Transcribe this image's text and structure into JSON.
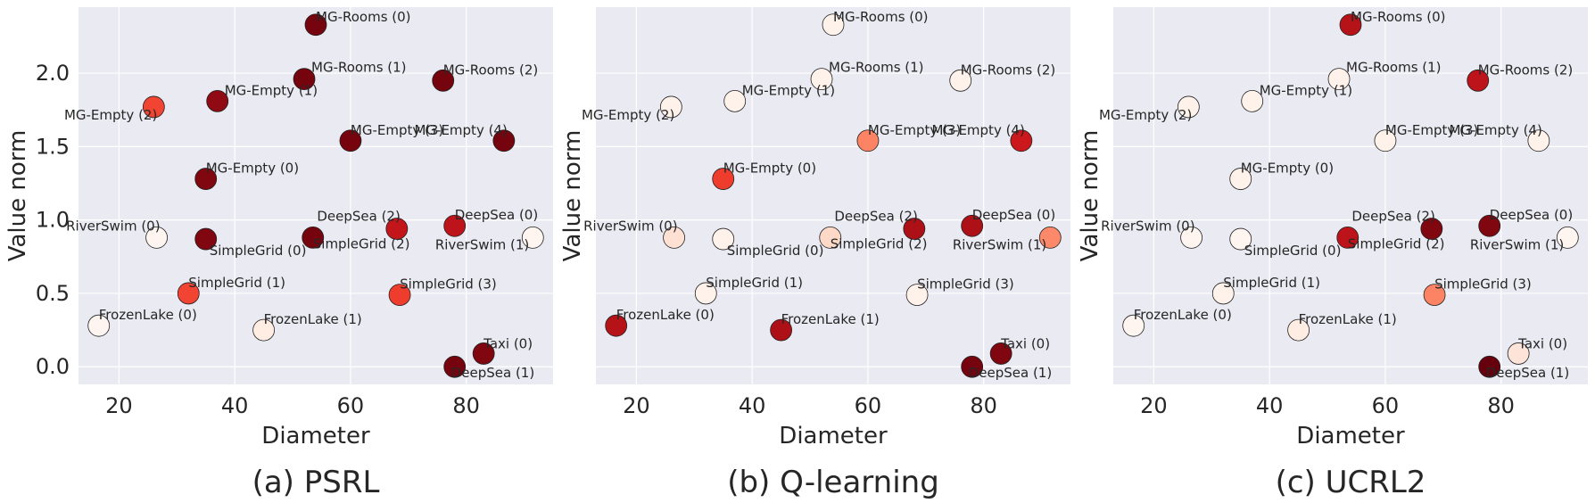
{
  "chart_data": [
    {
      "type": "scatter",
      "caption": "(a) PSRL",
      "xlabel": "Diameter",
      "ylabel": "Value norm",
      "xlim": [
        13,
        95
      ],
      "ylim": [
        -0.12,
        2.45
      ],
      "xticks": [
        20,
        40,
        60,
        80
      ],
      "yticks": [
        0.0,
        0.5,
        1.0,
        1.5,
        2.0
      ],
      "grid": true,
      "colormap": "Reds",
      "points": [
        {
          "label": "MG-Rooms (0)",
          "x": 54.0,
          "y": 2.33,
          "c": 0.97
        },
        {
          "label": "MG-Rooms (1)",
          "x": 52.0,
          "y": 1.96,
          "c": 0.97
        },
        {
          "label": "MG-Rooms (2)",
          "x": 76.0,
          "y": 1.95,
          "c": 0.97
        },
        {
          "label": "MG-Empty (1)",
          "x": 37.0,
          "y": 1.81,
          "c": 0.92
        },
        {
          "label": "MG-Empty (2)",
          "x": 26.0,
          "y": 1.77,
          "c": 0.6
        },
        {
          "label": "MG-Empty (3)",
          "x": 60.0,
          "y": 1.54,
          "c": 0.97
        },
        {
          "label": "MG-Empty (4)",
          "x": 86.5,
          "y": 1.54,
          "c": 0.97
        },
        {
          "label": "MG-Empty (0)",
          "x": 35.0,
          "y": 1.28,
          "c": 0.95
        },
        {
          "label": "RiverSwim (0)",
          "x": 26.5,
          "y": 0.88,
          "c": 0.0
        },
        {
          "label": "SimpleGrid (0)",
          "x": 35.0,
          "y": 0.87,
          "c": 0.95
        },
        {
          "label": "SimpleGrid (2)",
          "x": 53.5,
          "y": 0.88,
          "c": 0.97
        },
        {
          "label": "DeepSea (2)",
          "x": 68.0,
          "y": 0.94,
          "c": 0.78
        },
        {
          "label": "DeepSea (0)",
          "x": 78.0,
          "y": 0.96,
          "c": 0.8
        },
        {
          "label": "RiverSwim (1)",
          "x": 91.5,
          "y": 0.88,
          "c": 0.0
        },
        {
          "label": "SimpleGrid (1)",
          "x": 32.0,
          "y": 0.5,
          "c": 0.6
        },
        {
          "label": "SimpleGrid (3)",
          "x": 68.5,
          "y": 0.49,
          "c": 0.62
        },
        {
          "label": "FrozenLake (0)",
          "x": 16.5,
          "y": 0.28,
          "c": 0.0
        },
        {
          "label": "FrozenLake (1)",
          "x": 45.0,
          "y": 0.25,
          "c": 0.05
        },
        {
          "label": "Taxi (0)",
          "x": 83.0,
          "y": 0.09,
          "c": 0.95
        },
        {
          "label": "DeepSea (1)",
          "x": 78.0,
          "y": 0.0,
          "c": 0.97
        }
      ]
    },
    {
      "type": "scatter",
      "caption": "(b) Q-learning",
      "xlabel": "Diameter",
      "ylabel": "Value norm",
      "xlim": [
        13,
        95
      ],
      "ylim": [
        -0.12,
        2.45
      ],
      "xticks": [
        20,
        40,
        60,
        80
      ],
      "yticks": [
        0.0,
        0.5,
        1.0,
        1.5,
        2.0
      ],
      "grid": true,
      "colormap": "Reds",
      "points": [
        {
          "label": "MG-Rooms (0)",
          "x": 54.0,
          "y": 2.33,
          "c": 0.02
        },
        {
          "label": "MG-Rooms (1)",
          "x": 52.0,
          "y": 1.96,
          "c": 0.02
        },
        {
          "label": "MG-Rooms (2)",
          "x": 76.0,
          "y": 1.95,
          "c": 0.02
        },
        {
          "label": "MG-Empty (1)",
          "x": 37.0,
          "y": 1.81,
          "c": 0.02
        },
        {
          "label": "MG-Empty (2)",
          "x": 26.0,
          "y": 1.77,
          "c": 0.02
        },
        {
          "label": "MG-Empty (3)",
          "x": 60.0,
          "y": 1.54,
          "c": 0.42
        },
        {
          "label": "MG-Empty (4)",
          "x": 86.5,
          "y": 1.54,
          "c": 0.75
        },
        {
          "label": "MG-Empty (0)",
          "x": 35.0,
          "y": 1.28,
          "c": 0.62
        },
        {
          "label": "RiverSwim (0)",
          "x": 26.5,
          "y": 0.88,
          "c": 0.12
        },
        {
          "label": "SimpleGrid (0)",
          "x": 35.0,
          "y": 0.87,
          "c": 0.02
        },
        {
          "label": "SimpleGrid (2)",
          "x": 53.5,
          "y": 0.88,
          "c": 0.15
        },
        {
          "label": "DeepSea (2)",
          "x": 68.0,
          "y": 0.94,
          "c": 0.85
        },
        {
          "label": "DeepSea (0)",
          "x": 78.0,
          "y": 0.96,
          "c": 0.85
        },
        {
          "label": "RiverSwim (1)",
          "x": 91.5,
          "y": 0.88,
          "c": 0.4
        },
        {
          "label": "SimpleGrid (1)",
          "x": 32.0,
          "y": 0.5,
          "c": 0.02
        },
        {
          "label": "SimpleGrid (3)",
          "x": 68.5,
          "y": 0.49,
          "c": 0.02
        },
        {
          "label": "FrozenLake (0)",
          "x": 16.5,
          "y": 0.28,
          "c": 0.82
        },
        {
          "label": "FrozenLake (1)",
          "x": 45.0,
          "y": 0.25,
          "c": 0.85
        },
        {
          "label": "Taxi (0)",
          "x": 83.0,
          "y": 0.09,
          "c": 0.95
        },
        {
          "label": "DeepSea (1)",
          "x": 78.0,
          "y": 0.0,
          "c": 0.97
        }
      ]
    },
    {
      "type": "scatter",
      "caption": "(c) UCRL2",
      "xlabel": "Diameter",
      "ylabel": "Value norm",
      "xlim": [
        13,
        95
      ],
      "ylim": [
        -0.12,
        2.45
      ],
      "xticks": [
        20,
        40,
        60,
        80
      ],
      "yticks": [
        0.0,
        0.5,
        1.0,
        1.5,
        2.0
      ],
      "grid": true,
      "colormap": "Reds",
      "points": [
        {
          "label": "MG-Rooms (0)",
          "x": 54.0,
          "y": 2.33,
          "c": 0.82
        },
        {
          "label": "MG-Rooms (1)",
          "x": 52.0,
          "y": 1.96,
          "c": 0.02
        },
        {
          "label": "MG-Rooms (2)",
          "x": 76.0,
          "y": 1.95,
          "c": 0.8
        },
        {
          "label": "MG-Empty (1)",
          "x": 37.0,
          "y": 1.81,
          "c": 0.02
        },
        {
          "label": "MG-Empty (2)",
          "x": 26.0,
          "y": 1.77,
          "c": 0.02
        },
        {
          "label": "MG-Empty (3)",
          "x": 60.0,
          "y": 1.54,
          "c": 0.02
        },
        {
          "label": "MG-Empty (4)",
          "x": 86.5,
          "y": 1.54,
          "c": 0.02
        },
        {
          "label": "MG-Empty (0)",
          "x": 35.0,
          "y": 1.28,
          "c": 0.02
        },
        {
          "label": "RiverSwim (0)",
          "x": 26.5,
          "y": 0.88,
          "c": 0.0
        },
        {
          "label": "SimpleGrid (0)",
          "x": 35.0,
          "y": 0.87,
          "c": 0.0
        },
        {
          "label": "SimpleGrid (2)",
          "x": 53.5,
          "y": 0.88,
          "c": 0.8
        },
        {
          "label": "DeepSea (2)",
          "x": 68.0,
          "y": 0.94,
          "c": 0.95
        },
        {
          "label": "DeepSea (0)",
          "x": 78.0,
          "y": 0.96,
          "c": 0.95
        },
        {
          "label": "RiverSwim (1)",
          "x": 91.5,
          "y": 0.88,
          "c": 0.0
        },
        {
          "label": "SimpleGrid (1)",
          "x": 32.0,
          "y": 0.5,
          "c": 0.02
        },
        {
          "label": "SimpleGrid (3)",
          "x": 68.5,
          "y": 0.49,
          "c": 0.42
        },
        {
          "label": "FrozenLake (0)",
          "x": 16.5,
          "y": 0.28,
          "c": 0.0
        },
        {
          "label": "FrozenLake (1)",
          "x": 45.0,
          "y": 0.25,
          "c": 0.05
        },
        {
          "label": "Taxi (0)",
          "x": 83.0,
          "y": 0.09,
          "c": 0.1
        },
        {
          "label": "DeepSea (1)",
          "x": 78.0,
          "y": 0.0,
          "c": 1.0
        }
      ]
    }
  ]
}
